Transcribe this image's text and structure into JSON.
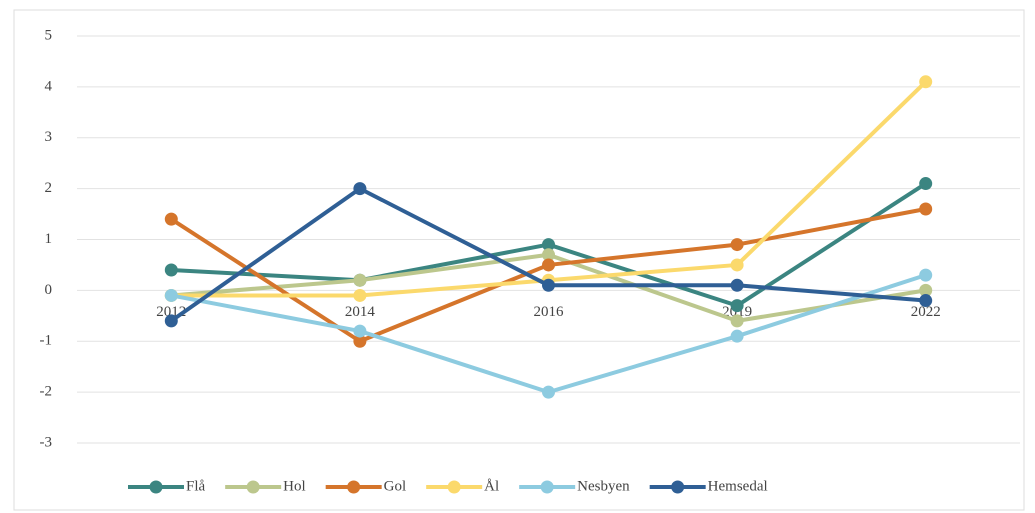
{
  "chart_data": {
    "type": "line",
    "categories": [
      "2012",
      "2014",
      "2016",
      "2019",
      "2022"
    ],
    "series": [
      {
        "name": "Flå",
        "color": "#3b8581",
        "values": [
          0.4,
          0.2,
          0.9,
          -0.3,
          2.1
        ]
      },
      {
        "name": "Hol",
        "color": "#bcc78d",
        "values": [
          -0.1,
          0.2,
          0.7,
          -0.6,
          0.0
        ]
      },
      {
        "name": "Gol",
        "color": "#d5752b",
        "values": [
          1.4,
          -1.0,
          0.5,
          0.9,
          1.6
        ]
      },
      {
        "name": "Ål",
        "color": "#fbd96c",
        "values": [
          -0.1,
          -0.1,
          0.2,
          0.5,
          4.1
        ]
      },
      {
        "name": "Nesbyen",
        "color": "#8dcbe0",
        "values": [
          -0.1,
          -0.8,
          -2.0,
          -0.9,
          0.3
        ]
      },
      {
        "name": "Hemsedal",
        "color": "#2f5f95",
        "values": [
          -0.6,
          2.0,
          0.1,
          0.1,
          -0.2
        ]
      }
    ],
    "ylim": [
      -3,
      5
    ],
    "yticks": [
      5,
      4,
      3,
      2,
      1,
      0,
      -1,
      -2,
      -3
    ],
    "grid": true,
    "legend": "bottom"
  }
}
